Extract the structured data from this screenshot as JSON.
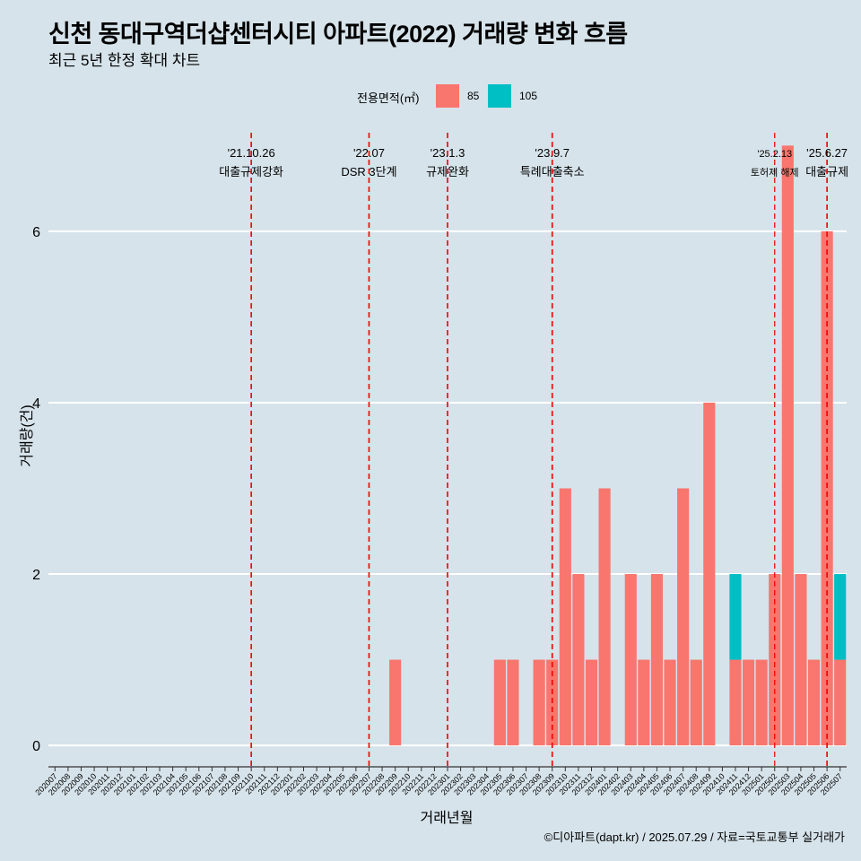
{
  "title": "신천 동대구역더샵센터시티 아파트(2022) 거래량 변화 흐름",
  "subtitle": "최근 5년 한정 확대 차트",
  "caption": "©디아파트(dapt.kr) / 2025.07.29 / 자료=국토교통부 실거래가",
  "colors": {
    "background": "#d6e3ea",
    "s85": "#f8766d",
    "s105": "#00bfc4",
    "event_line": "#ee0000",
    "grid": "#ffffff"
  },
  "chart_data": {
    "type": "bar",
    "stacked": true,
    "xlabel": "거래년월",
    "ylabel": "거래량(건)",
    "legend_title": "전용면적(㎡)",
    "legend_position": "top",
    "ylim": [
      -0.25,
      7.15
    ],
    "yticks": [
      0,
      2,
      4,
      6
    ],
    "grid": true,
    "categories": [
      "202007",
      "202008",
      "202009",
      "202010",
      "202011",
      "202012",
      "202101",
      "202102",
      "202103",
      "202104",
      "202105",
      "202106",
      "202107",
      "202108",
      "202109",
      "202110",
      "202111",
      "202112",
      "202201",
      "202202",
      "202203",
      "202204",
      "202205",
      "202206",
      "202207",
      "202208",
      "202209",
      "202210",
      "202211",
      "202212",
      "202301",
      "202302",
      "202303",
      "202304",
      "202305",
      "202306",
      "202307",
      "202308",
      "202309",
      "202310",
      "202311",
      "202312",
      "202401",
      "202402",
      "202403",
      "202404",
      "202405",
      "202406",
      "202407",
      "202408",
      "202409",
      "202410",
      "202411",
      "202412",
      "202501",
      "202502",
      "202503",
      "202504",
      "202505",
      "202506",
      "202507"
    ],
    "series": [
      {
        "name": "85",
        "values": [
          0,
          0,
          0,
          0,
          0,
          0,
          0,
          0,
          0,
          0,
          0,
          0,
          0,
          0,
          0,
          0,
          0,
          0,
          0,
          0,
          0,
          0,
          0,
          0,
          0,
          0,
          1,
          0,
          0,
          0,
          0,
          0,
          0,
          0,
          1,
          1,
          0,
          1,
          1,
          3,
          2,
          1,
          3,
          0,
          2,
          1,
          2,
          1,
          3,
          1,
          4,
          0,
          1,
          1,
          1,
          2,
          7,
          2,
          1,
          6,
          1
        ]
      },
      {
        "name": "105",
        "values": [
          0,
          0,
          0,
          0,
          0,
          0,
          0,
          0,
          0,
          0,
          0,
          0,
          0,
          0,
          0,
          0,
          0,
          0,
          0,
          0,
          0,
          0,
          0,
          0,
          0,
          0,
          0,
          0,
          0,
          0,
          0,
          0,
          0,
          0,
          0,
          0,
          0,
          0,
          0,
          0,
          0,
          0,
          0,
          0,
          0,
          0,
          0,
          0,
          0,
          0,
          0,
          0,
          1,
          0,
          0,
          0,
          0,
          0,
          0,
          0,
          1
        ]
      }
    ],
    "events": [
      {
        "x": 15.0,
        "date": "'21.10.26",
        "label": "대출규제강화",
        "small": false
      },
      {
        "x": 24.0,
        "date": "'22.07",
        "label": "DSR 3단계",
        "small": false
      },
      {
        "x": 30.0,
        "date": "'23.1.3",
        "label": "규제완화",
        "small": false
      },
      {
        "x": 38.0,
        "date": "'23.9.7",
        "label": "특례대출축소",
        "small": false
      },
      {
        "x": 55.0,
        "date": "'25.2.13",
        "label": "토허제 해제",
        "small": true
      },
      {
        "x": 59.0,
        "date": "'25.6.27",
        "label": "대출규제",
        "small": false
      }
    ]
  }
}
